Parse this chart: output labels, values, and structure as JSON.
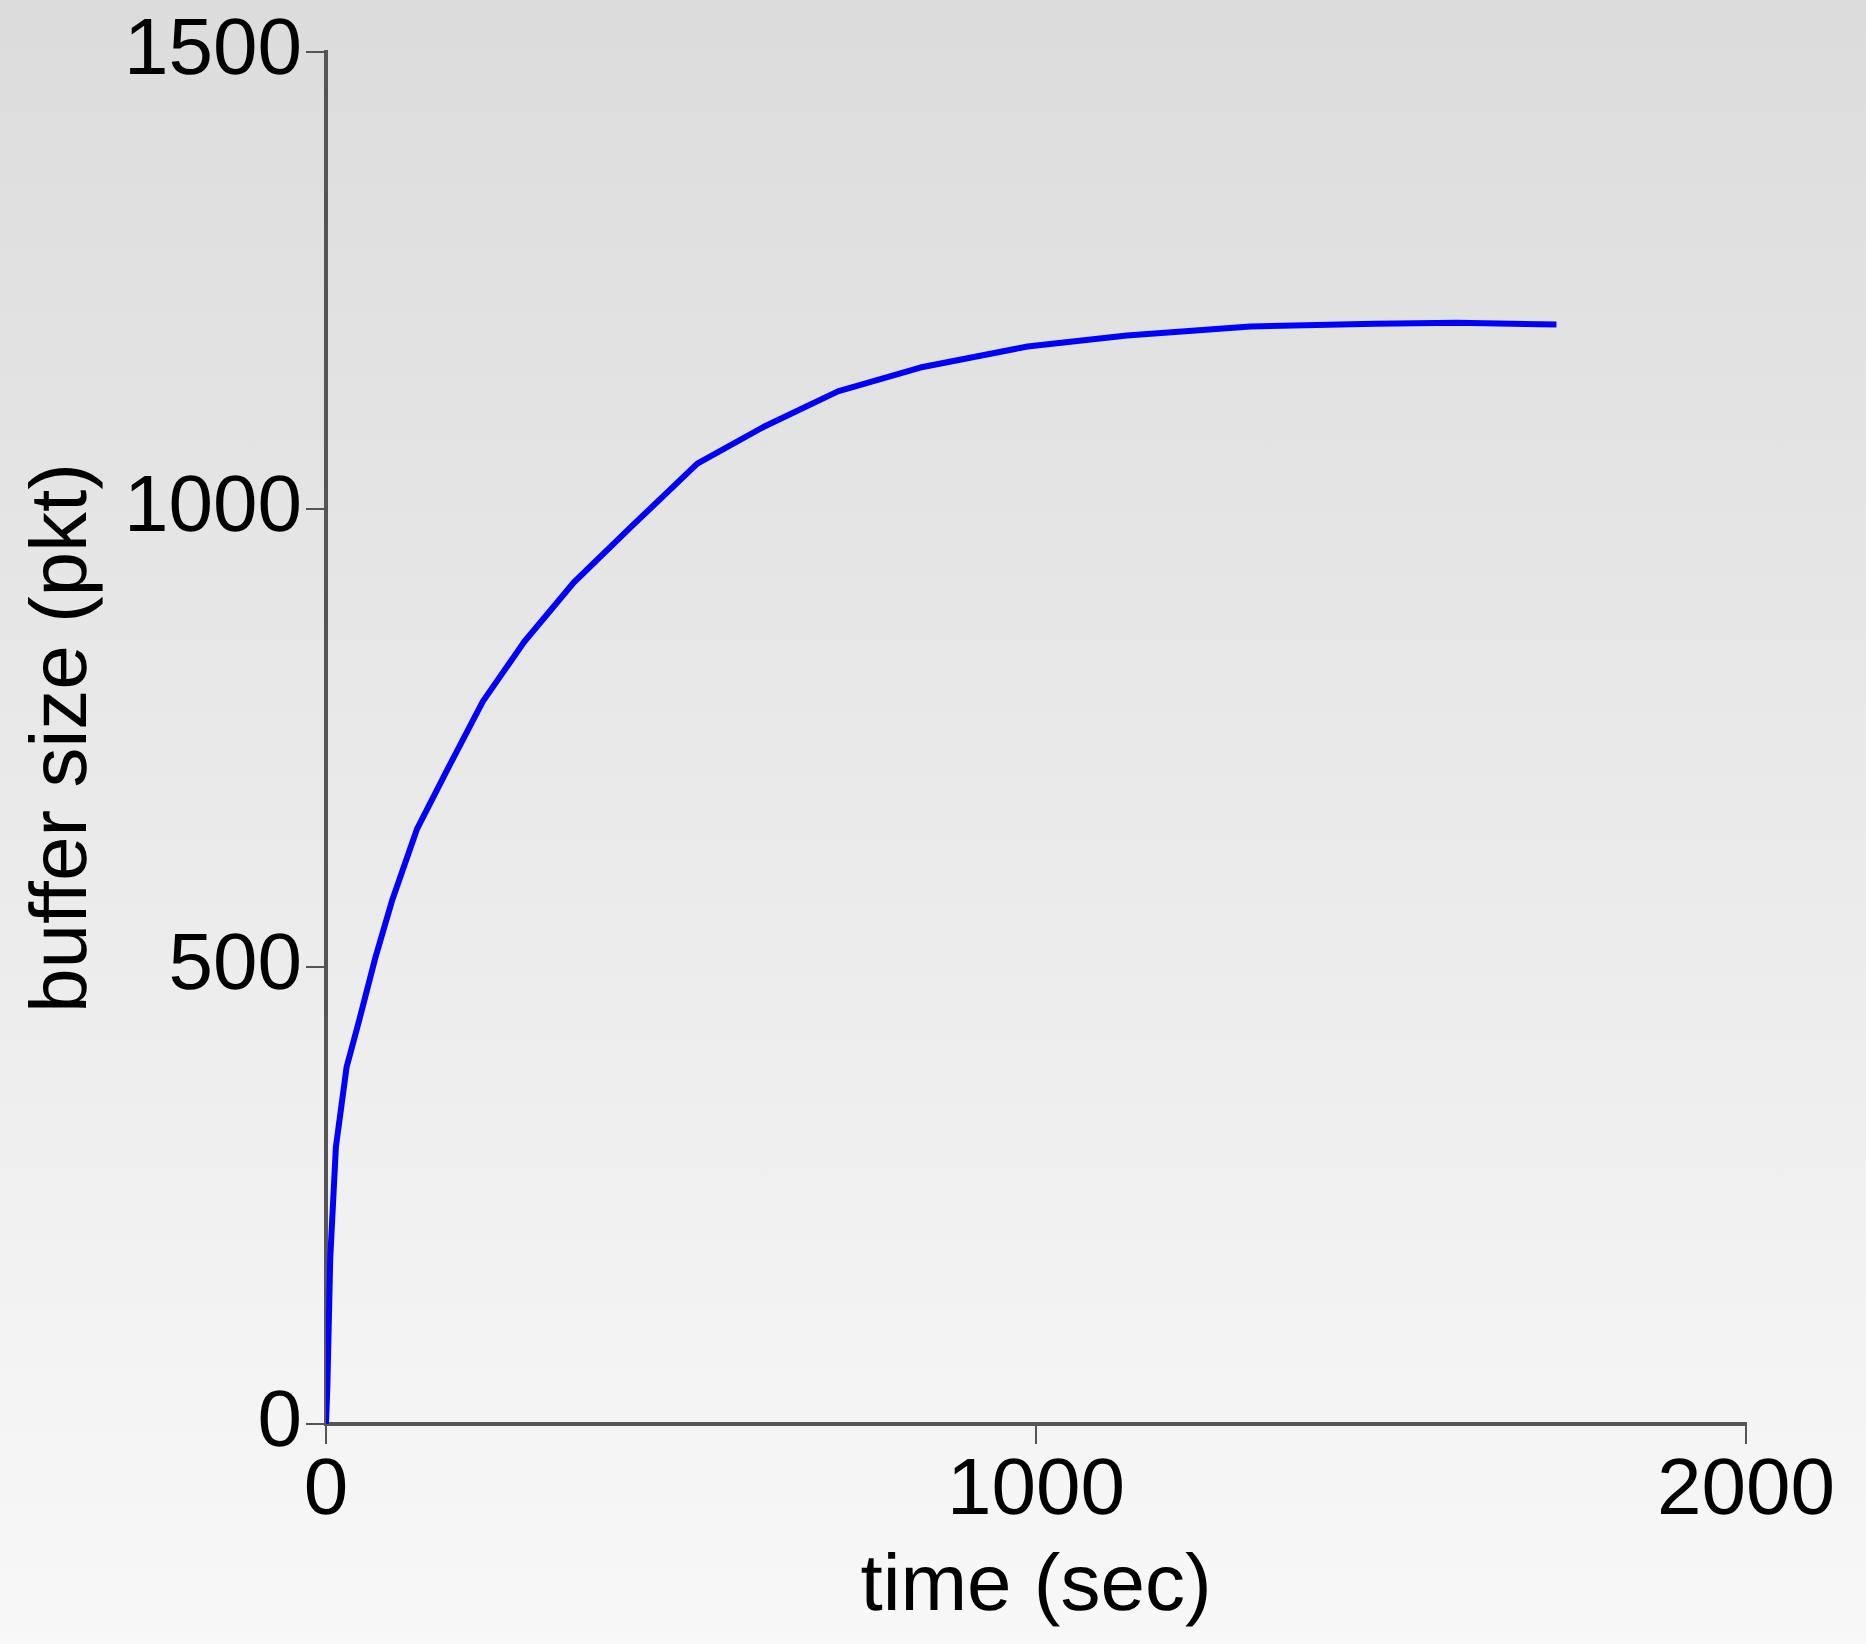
{
  "chart_data": {
    "type": "line",
    "xlabel": "time (sec)",
    "ylabel": "buffer size (pkt)",
    "x": [
      0,
      2,
      6,
      14,
      29,
      47,
      70,
      93,
      128,
      174,
      221,
      279,
      349,
      430,
      523,
      616,
      721,
      837,
      988,
      1128,
      1302,
      1477,
      1593,
      1733
    ],
    "series": [
      {
        "color": "#0000ff",
        "values": [
          0,
          42,
          181,
          303,
          390,
          442,
          511,
          572,
          650,
          720,
          790,
          855,
          920,
          981,
          1050,
          1090,
          1129,
          1155,
          1178,
          1190,
          1200,
          1203,
          1204,
          1202
        ]
      }
    ],
    "xlim": [
      0,
      2000
    ],
    "xticks": [
      0,
      1000,
      2000
    ],
    "ylim": [
      0,
      1500
    ],
    "yticks": [
      0,
      500,
      1000,
      1500
    ],
    "grid": false,
    "legend": false,
    "marker": "none",
    "line_style": "solid"
  }
}
